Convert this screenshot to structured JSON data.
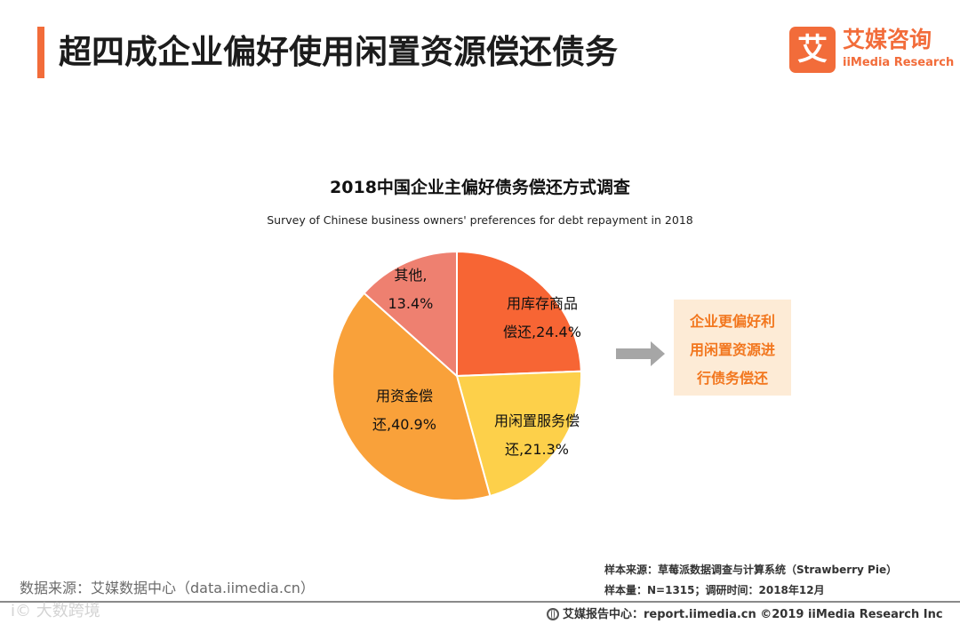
{
  "page": {
    "title": "超四成企业偏好使用闲置资源偿还债务"
  },
  "logo": {
    "mark": "艾",
    "name_cn": "艾媒咨询",
    "name_en": "iiMedia Research"
  },
  "chart_data": {
    "type": "pie",
    "title": "2018中国企业主偏好债务偿还方式调查",
    "subtitle": "Survey of Chinese business owners' preferences for debt repayment  in 2018",
    "start_angle_deg": 0,
    "direction": "clockwise",
    "slices": [
      {
        "label_line1": "用库存商品",
        "label_line2": "偿还,24.4%",
        "value": 24.4,
        "color": "#f76534"
      },
      {
        "label_line1": "用闲置服务偿",
        "label_line2": "还,21.3%",
        "value": 21.3,
        "color": "#fdd04a"
      },
      {
        "label_line1": "用资金偿",
        "label_line2": "还,40.9%",
        "value": 40.9,
        "color": "#f9a13a"
      },
      {
        "label_line1": "其他,",
        "label_line2": "13.4%",
        "value": 13.4,
        "color": "#ee8070"
      }
    ]
  },
  "callout": {
    "lines": [
      "企业更偏好利",
      "用闲置资源进",
      "行债务偿还"
    ],
    "arrow_color": "#a6a6a6"
  },
  "footer": {
    "data_source": "数据来源：艾媒数据中心（data.iimedia.cn）",
    "sample_source": "样本来源：草莓派数据调查与计算系统（Strawberry  Pie）",
    "sample_size": "样本量：N=1315；调研时间：2018年12月",
    "report_center": "艾媒报告中心：report.iimedia.cn  ©2019  iiMedia Research  Inc",
    "watermark": "i© 大数跨境"
  }
}
